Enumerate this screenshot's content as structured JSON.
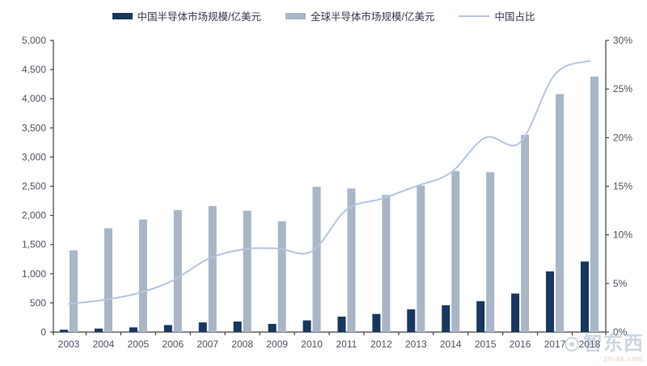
{
  "chart_data": {
    "type": "bar+line combo",
    "categories": [
      "2003",
      "2004",
      "2005",
      "2006",
      "2007",
      "2008",
      "2009",
      "2010",
      "2011",
      "2012",
      "2013",
      "2014",
      "2015",
      "2016",
      "2017",
      "2018"
    ],
    "series": [
      {
        "name": "中国半导体市场规模/亿美元",
        "type": "bar",
        "axis": "left",
        "color": "#17375e",
        "values": [
          40,
          60,
          80,
          120,
          165,
          180,
          140,
          200,
          265,
          310,
          390,
          460,
          530,
          660,
          1040,
          1210
        ]
      },
      {
        "name": "全球半导体市场规模/亿美元",
        "type": "bar",
        "axis": "left",
        "color": "#a8b6c6",
        "values": [
          1400,
          1780,
          1930,
          2090,
          2160,
          2080,
          1900,
          2490,
          2460,
          2350,
          2510,
          2760,
          2740,
          3380,
          4080,
          4380
        ]
      },
      {
        "name": "中国占比",
        "type": "line",
        "axis": "right",
        "unit": "%",
        "color": "#b6c4e2",
        "values": [
          2.9,
          3.3,
          4.0,
          5.3,
          7.5,
          8.5,
          8.6,
          8.3,
          12.6,
          13.7,
          15.0,
          16.4,
          20.0,
          19.5,
          26.5,
          27.9
        ]
      }
    ],
    "left_axis": {
      "min": 0,
      "max": 5000,
      "step": 500,
      "tick_labels": [
        "0",
        "500",
        "1,000",
        "1,500",
        "2,000",
        "2,500",
        "3,000",
        "3,500",
        "4,000",
        "4,500",
        "5,000"
      ]
    },
    "right_axis": {
      "min": 0,
      "max": 30,
      "step": 5,
      "tick_labels": [
        "0%",
        "5%",
        "10%",
        "15%",
        "20%",
        "25%",
        "30%"
      ]
    },
    "grid": false,
    "legend_position": "top",
    "title": ""
  },
  "colors": {
    "axis": "#404040",
    "tick_text": "#4d5360"
  },
  "watermark": {
    "text": "智东西",
    "subtext": "zhidx.com"
  }
}
